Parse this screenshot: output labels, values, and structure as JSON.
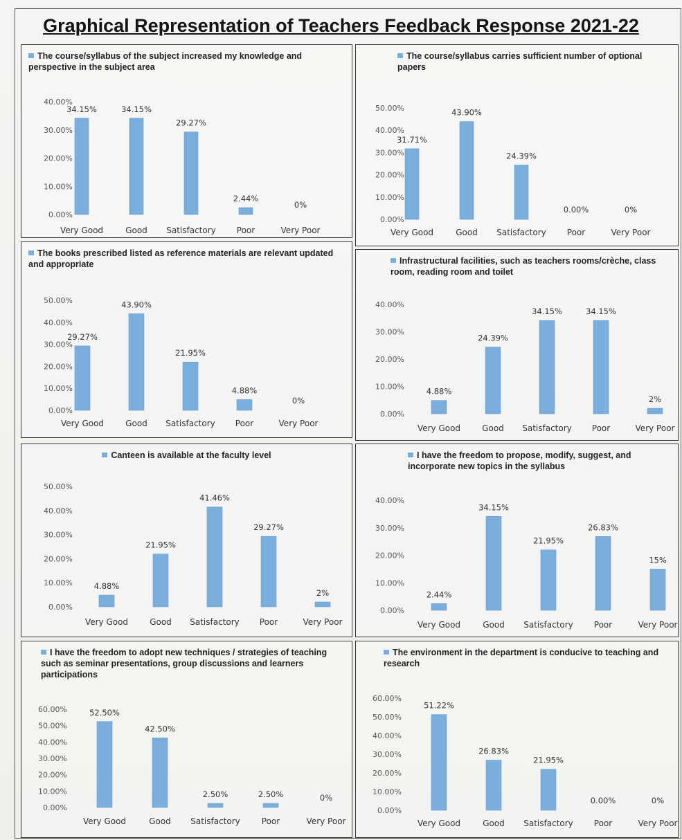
{
  "page": {
    "title": "Graphical Representation of Teachers Feedback Response 2021-22"
  },
  "chart_data": [
    {
      "type": "bar",
      "title": "The course/syllabus of the subject increased my knowledge and perspective in the subject area",
      "categories": [
        "Very Good",
        "Good",
        "Satisfactory",
        "Poor",
        "Very Poor"
      ],
      "values": [
        34.15,
        34.15,
        29.27,
        2.44,
        0
      ],
      "data_labels": [
        "34.15%",
        "34.15%",
        "29.27%",
        "2.44%",
        "0%"
      ],
      "ylim": [
        0,
        40
      ],
      "yticks": [
        "0.00%",
        "10.00%",
        "20.00%",
        "30.00%",
        "40.00%"
      ],
      "color": "#7aaedc"
    },
    {
      "type": "bar",
      "title": "The course/syllabus carries sufficient number of optional papers",
      "categories": [
        "Very Good",
        "Good",
        "Satisfactory",
        "Poor",
        "Very Poor"
      ],
      "values": [
        31.71,
        43.9,
        24.39,
        0,
        0
      ],
      "data_labels": [
        "31.71%",
        "43.90%",
        "24.39%",
        "0.00%",
        "0%"
      ],
      "ylim": [
        0,
        50
      ],
      "yticks": [
        "0.00%",
        "10.00%",
        "20.00%",
        "30.00%",
        "40.00%",
        "50.00%"
      ],
      "color": "#7aaedc"
    },
    {
      "type": "bar",
      "title": "The books prescribed listed as reference materials are relevant updated and appropriate",
      "categories": [
        "Very Good",
        "Good",
        "Satisfactory",
        "Poor",
        "Very Poor"
      ],
      "values": [
        29.27,
        43.9,
        21.95,
        4.88,
        0
      ],
      "data_labels": [
        "29.27%",
        "43.90%",
        "21.95%",
        "4.88%",
        "0%"
      ],
      "ylim": [
        0,
        50
      ],
      "yticks": [
        "0.00%",
        "10.00%",
        "20.00%",
        "30.00%",
        "40.00%",
        "50.00%"
      ],
      "color": "#7aaedc"
    },
    {
      "type": "bar",
      "title": "Infrastructural facilities, such as teachers rooms/crèche, class room, reading room and toilet",
      "categories": [
        "Very Good",
        "Good",
        "Satisfactory",
        "Poor",
        "Very Poor"
      ],
      "values": [
        4.88,
        24.39,
        34.15,
        34.15,
        2
      ],
      "data_labels": [
        "4.88%",
        "24.39%",
        "34.15%",
        "34.15%",
        "2%"
      ],
      "ylim": [
        0,
        40
      ],
      "yticks": [
        "0.00%",
        "10.00%",
        "20.00%",
        "30.00%",
        "40.00%"
      ],
      "color": "#7aaedc"
    },
    {
      "type": "bar",
      "title": "Canteen is available at the faculty level",
      "categories": [
        "Very Good",
        "Good",
        "Satisfactory",
        "Poor",
        "Very Poor"
      ],
      "values": [
        4.88,
        21.95,
        41.46,
        29.27,
        2
      ],
      "data_labels": [
        "4.88%",
        "21.95%",
        "41.46%",
        "29.27%",
        "2%"
      ],
      "ylim": [
        0,
        50
      ],
      "yticks": [
        "0.00%",
        "10.00%",
        "20.00%",
        "30.00%",
        "40.00%",
        "50.00%"
      ],
      "color": "#7aaedc"
    },
    {
      "type": "bar",
      "title": "I have the freedom to propose, modify, suggest, and incorporate new topics in the syllabus",
      "categories": [
        "Very Good",
        "Good",
        "Satisfactory",
        "Poor",
        "Very Poor"
      ],
      "values": [
        2.44,
        34.15,
        21.95,
        26.83,
        15
      ],
      "data_labels": [
        "2.44%",
        "34.15%",
        "21.95%",
        "26.83%",
        "15%"
      ],
      "ylim": [
        0,
        40
      ],
      "yticks": [
        "0.00%",
        "10.00%",
        "20.00%",
        "30.00%",
        "40.00%"
      ],
      "color": "#7aaedc"
    },
    {
      "type": "bar",
      "title": "I have the freedom to adopt new techniques / strategies of teaching such as seminar presentations, group discussions and learners participations",
      "categories": [
        "Very Good",
        "Good",
        "Satisfactory",
        "Poor",
        "Very Poor"
      ],
      "values": [
        52.5,
        42.5,
        2.5,
        2.5,
        0
      ],
      "data_labels": [
        "52.50%",
        "42.50%",
        "2.50%",
        "2.50%",
        "0%"
      ],
      "ylim": [
        0,
        60
      ],
      "yticks": [
        "0.00%",
        "10.00%",
        "20.00%",
        "30.00%",
        "40.00%",
        "50.00%",
        "60.00%"
      ],
      "color": "#7aaedc"
    },
    {
      "type": "bar",
      "title": "The environment in the department is conducive to teaching and research",
      "categories": [
        "Very Good",
        "Good",
        "Satisfactory",
        "Poor",
        "Very Poor"
      ],
      "values": [
        51.22,
        26.83,
        21.95,
        0,
        0
      ],
      "data_labels": [
        "51.22%",
        "26.83%",
        "21.95%",
        "0.00%",
        "0%"
      ],
      "ylim": [
        0,
        60
      ],
      "yticks": [
        "0.00%",
        "10.00%",
        "20.00%",
        "30.00%",
        "40.00%",
        "50.00%",
        "60.00%"
      ],
      "color": "#7aaedc"
    }
  ]
}
